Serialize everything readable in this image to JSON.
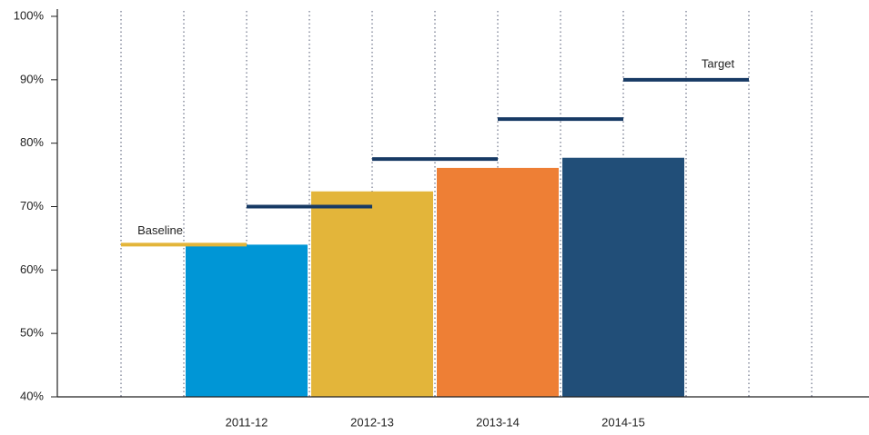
{
  "chart_data": {
    "type": "bar",
    "categories": [
      "2011-12",
      "2012-13",
      "2013-14",
      "2014-15"
    ],
    "values": [
      64,
      72.4,
      76.1,
      77.7
    ],
    "colors": [
      "#0096d6",
      "#e3b53a",
      "#ee7f35",
      "#214e78"
    ],
    "baseline": {
      "name": "Baseline",
      "value": 64,
      "color": "#e3b53a"
    },
    "targets": {
      "name": "Target",
      "values": [
        70,
        77.5,
        83.8,
        90
      ],
      "color": "#173a64"
    },
    "ylim": [
      40,
      100
    ],
    "yticks": [
      {
        "value": 40,
        "label": "40%"
      },
      {
        "value": 50,
        "label": "50%"
      },
      {
        "value": 60,
        "label": "60%"
      },
      {
        "value": 70,
        "label": "70%"
      },
      {
        "value": 80,
        "label": "80%"
      },
      {
        "value": 90,
        "label": "90%"
      },
      {
        "value": 100,
        "label": "100%"
      }
    ]
  }
}
